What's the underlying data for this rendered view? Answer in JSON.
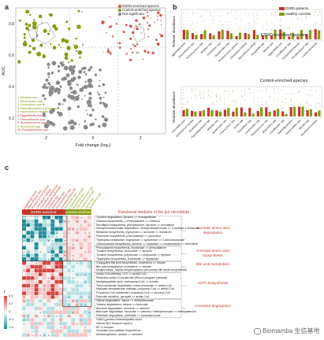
{
  "panels": {
    "a": "a",
    "b": "b",
    "c": "c"
  },
  "panel_a": {
    "xlabel": "Fold change (log₂)",
    "ylabel": "AUC",
    "xticks": [
      "-2",
      "0",
      "2"
    ],
    "yticks": [
      "0.8",
      "0.6",
      "0.4",
      "0.2"
    ],
    "legend": [
      {
        "label": "ESRD-enriched species",
        "color": "#d9534f"
      },
      {
        "label": "Control-enriched species",
        "color": "#8a9a14"
      },
      {
        "label": "Not significant",
        "color": "#888888"
      }
    ],
    "point_numbers": [
      "1",
      "2",
      "3",
      "4",
      "5",
      "6",
      "7",
      "8",
      "9",
      "10"
    ],
    "species_list": [
      {
        "n": "1",
        "name": "Alistipes spp",
        "group": "control"
      },
      {
        "n": "2",
        "name": "Bacteroides spp",
        "group": "control"
      },
      {
        "n": "3",
        "name": "Clostridium spp",
        "group": "control"
      },
      {
        "n": "4",
        "name": "Faecalibacterium prausnitzii",
        "group": "control"
      },
      {
        "n": "5",
        "name": "Eubacterium rectale",
        "group": "control"
      },
      {
        "n": "6",
        "name": "Eggerthella lenta",
        "group": "esrd"
      },
      {
        "n": "7",
        "name": "Flavonifractor spp",
        "group": "esrd"
      },
      {
        "n": "8",
        "name": "Ruminococcus spp",
        "group": "esrd"
      },
      {
        "n": "9",
        "name": "Roseburia spp",
        "group": "control"
      },
      {
        "n": "10",
        "name": "Fusobacterium spp",
        "group": "esrd"
      }
    ]
  },
  "panel_b": {
    "ylabel": "Relative abundance",
    "legend": [
      {
        "label": "ESRD patients",
        "color": "#c0392b"
      },
      {
        "label": "Healthy controls",
        "color": "#8a9a14"
      }
    ],
    "top_title": "ESRD-enriched species",
    "bottom_title": "Control-enriched species",
    "top_xlabels": [
      "Eggerthella lenta",
      "Flavonifractor spp",
      "Ruminococcus spp",
      "Alistipes spp",
      "Clostridium spp",
      "Bacteroides spp",
      "Ruminococcus gnavus",
      "Clostridium bolteae",
      "Flavonifractor plautii",
      "Hungatella spp",
      "Blautia spp",
      "Eggerthella spp",
      "Oscillibacter spp",
      "Erysipelotrichaceae",
      "Fusobacterium spp",
      "Lachnospiraceae"
    ],
    "bottom_xlabels": [
      "Prevotella copri",
      "Eubacterium rectale",
      "Roseburia spp",
      "Faecalibacterium spp",
      "Alistipes spp",
      "Bacteroides spp",
      "Coprococcus spp",
      "Dorea spp",
      "Clostridium spp",
      "Lachnospira spp",
      "Ruminococcus spp",
      "Butyrivibrio spp",
      "Oscillibacter spp",
      "Subdoligranulum",
      "Anaerostipes spp",
      "Blautia spp",
      "Roseburia hominis"
    ]
  },
  "panel_c": {
    "header_esrd": "ESRD-enriched",
    "header_control": "control-enriched",
    "header_modules": "Functional modules of the gut microbiota",
    "colorbar_title": "r",
    "colorbar_ticks": [
      "0.4",
      "0.2",
      "0",
      "-0.2",
      "-0.4"
    ],
    "col_labels": [
      "Eggerthella lenta",
      "Flavonifractor spp",
      "Ruminococcus gnavus",
      "Clostridium bolteae",
      "Clostridium symbiosum",
      "Hungatella hathewayi",
      "Alistipes spp",
      "Bacteroides spp",
      "Fusobacterium spp",
      "Erysipelotrichaceae",
      "Prevotella copri",
      "Eubacterium rectale",
      "Roseburia spp",
      "Faecalibacterium spp",
      "Coprococcus spp",
      "Dorea spp",
      "Butyrivibrio spp"
    ],
    "rows": [
      "Tyrosine degradation, tyrosine => homogentisate",
      "Catechol biosynthesis, L-Phenylalanine => Catechol",
      "Monolignol biosynthesis, phenylalanine / tyrosine => monolignol",
      "Homoprotocatechuate degradation, homoprotocatechuate => 2-oxohept-3-enedioate",
      "Melatonin biosynthesis, tryptophan => serotonin => melatonin",
      "Pavenecin biosynthesis, phenylalanine => pavenecin",
      "Tryptophan metabolism, tryptophan => kynurenine => 2-aminomuconate",
      "Catecholamine biosynthesis, tyrosine => dopamine => noradrenaline => adrenaline",
      "Phenylalanine biosynthesis, chorismate => phenylalanine",
      "Tyrosine biosynthesis, chorismate => tyrosine",
      "Tyrosine biosynthesis, prephenate => pretyrosine => tyrosine",
      "Tryptophan biosynthesis, chorismate => tryptophan",
      "Conjugated bile acid biosynthesis, cholesterol => cholate",
      "Bile acid biosynthesis, cholesterol => cholate",
      "Multiple steps, 7alpha-dehydroxylation (secondary bile acids biosynthesis)",
      "Acetyl-CoA pathway, CO2 => acetyl-CoA",
      "Reductive acetyl-CoA pathway (Wood-Ljungdahl pathway)",
      "Methylaspartate cycle, acetoacetyl-CoA => acetate",
      "Trans-cinnamate degradation, trans-cinnamate => acetyl-CoA",
      "Malonate semialdehyde pathway, propanoyl-CoA => acetyl-CoA",
      "Propanoyl-CoA metabolism, propanoyl-CoA => succinyl-CoA",
      "Pyruvate oxidation, pyruvate => acetyl-CoA",
      "Xylene degradation, xylene => methylbenzoate",
      "Toluene degradation, toluene => benzoate",
      "Benzene degradation, benzene => catechol",
      "Benzoate degradation, benzoate => catechol / methylbenzoate => methylcatechol",
      "Phthalate degradation, phthalate => protocatechuate",
      "GABA (gamma-Aminobutyrate) shunt",
      "Vitamin B12 transport system",
      "RF-C complex",
      "Ceramide and sulfatide biosynthesis",
      "Methanogenesis, acetate => methane"
    ],
    "groups": [
      {
        "label": "Aromatic amino acid degradation",
        "first": 0,
        "last": 7
      },
      {
        "label": "Aromatic amino acid biosynthesis",
        "first": 8,
        "last": 11
      },
      {
        "label": "Bile acid metabolism",
        "first": 12,
        "last": 14
      },
      {
        "label": "SCFA biosynthesis",
        "first": 15,
        "last": 21
      },
      {
        "label": "Aromatics degradation",
        "first": 22,
        "last": 26
      }
    ],
    "colors": {
      "pos_strong": "#d9453f",
      "pos_light": "#f4c5c5",
      "neg_strong": "#1f8f9a",
      "neg_light": "#b6e0e3"
    }
  },
  "watermark": "Biomamba 生信基地"
}
